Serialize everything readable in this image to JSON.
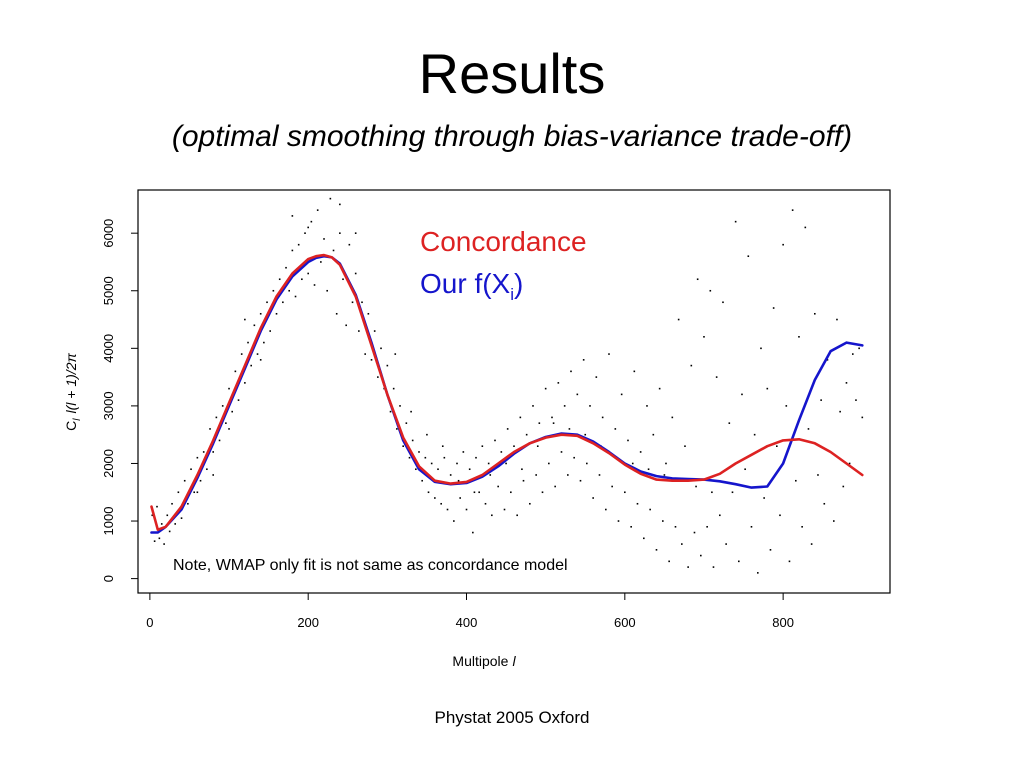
{
  "slide": {
    "title": "Results",
    "subtitle": "(optimal smoothing through bias-variance trade-off)",
    "footer": "Phystat 2005 Oxford"
  },
  "chart_data": {
    "type": "scatter",
    "xlabel_text": "Multipole",
    "xlabel_symbol": "l",
    "ylabel_c": "C",
    "ylabel_sub": "l",
    "ylabel_rest": "l(l + 1)/2π",
    "xlim": [
      -15,
      935
    ],
    "ylim": [
      -250,
      6750
    ],
    "x_ticks": [
      0,
      200,
      400,
      600,
      800
    ],
    "y_ticks": [
      0,
      1000,
      2000,
      3000,
      4000,
      5000,
      6000
    ],
    "grid": false,
    "legend_placement": "top-right inside plot",
    "annotation": "Note, WMAP only fit is not same as concordance model",
    "colors": {
      "concordance": "#dd2222",
      "fit": "#1515cc",
      "points": "#000000"
    },
    "series": [
      {
        "name": "Concordance",
        "legend_text": "Concordance",
        "color": "#dd2222",
        "x": [
          2,
          10,
          20,
          40,
          60,
          80,
          100,
          120,
          140,
          160,
          180,
          200,
          210,
          220,
          230,
          240,
          260,
          280,
          300,
          320,
          340,
          360,
          380,
          400,
          420,
          440,
          460,
          480,
          500,
          520,
          540,
          560,
          580,
          600,
          620,
          640,
          660,
          680,
          700,
          720,
          740,
          760,
          780,
          800,
          820,
          840,
          860,
          880,
          900
        ],
        "y": [
          1250,
          850,
          900,
          1250,
          1800,
          2400,
          3050,
          3700,
          4350,
          4900,
          5300,
          5550,
          5600,
          5620,
          5580,
          5450,
          4900,
          4050,
          3200,
          2450,
          1950,
          1700,
          1650,
          1680,
          1800,
          2000,
          2200,
          2350,
          2450,
          2500,
          2480,
          2350,
          2180,
          1980,
          1820,
          1720,
          1700,
          1700,
          1720,
          1820,
          2000,
          2150,
          2300,
          2400,
          2420,
          2350,
          2200,
          2000,
          1800
        ]
      },
      {
        "name": "Our f(Xi)",
        "legend_text": "Our f(X",
        "legend_sub": "i",
        "legend_close": ")",
        "color": "#1515cc",
        "x": [
          2,
          10,
          20,
          40,
          60,
          80,
          100,
          120,
          140,
          160,
          180,
          200,
          210,
          220,
          230,
          240,
          260,
          280,
          300,
          320,
          340,
          360,
          380,
          400,
          420,
          440,
          460,
          480,
          500,
          520,
          540,
          560,
          580,
          600,
          620,
          640,
          660,
          680,
          700,
          720,
          740,
          760,
          780,
          800,
          820,
          840,
          860,
          880,
          900
        ],
        "y": [
          800,
          800,
          900,
          1200,
          1750,
          2350,
          3000,
          3650,
          4300,
          4850,
          5250,
          5500,
          5570,
          5600,
          5580,
          5470,
          4930,
          4100,
          3200,
          2400,
          1900,
          1680,
          1640,
          1660,
          1770,
          1950,
          2170,
          2350,
          2460,
          2520,
          2500,
          2380,
          2200,
          2000,
          1860,
          1780,
          1740,
          1730,
          1720,
          1690,
          1640,
          1580,
          1600,
          2000,
          2750,
          3450,
          3950,
          4100,
          4050
        ]
      }
    ],
    "scatter_points": [
      [
        3,
        1100
      ],
      [
        6,
        650
      ],
      [
        9,
        1250
      ],
      [
        12,
        700
      ],
      [
        15,
        950
      ],
      [
        18,
        600
      ],
      [
        22,
        1100
      ],
      [
        25,
        820
      ],
      [
        28,
        1300
      ],
      [
        32,
        950
      ],
      [
        36,
        1500
      ],
      [
        40,
        1050
      ],
      [
        44,
        1700
      ],
      [
        48,
        1300
      ],
      [
        52,
        1900
      ],
      [
        56,
        1500
      ],
      [
        60,
        2100
      ],
      [
        64,
        1700
      ],
      [
        68,
        2200
      ],
      [
        72,
        1900
      ],
      [
        76,
        2600
      ],
      [
        80,
        2200
      ],
      [
        84,
        2800
      ],
      [
        88,
        2400
      ],
      [
        92,
        3000
      ],
      [
        96,
        2700
      ],
      [
        100,
        3300
      ],
      [
        104,
        2900
      ],
      [
        108,
        3600
      ],
      [
        112,
        3100
      ],
      [
        116,
        3900
      ],
      [
        120,
        3400
      ],
      [
        124,
        4100
      ],
      [
        128,
        3700
      ],
      [
        132,
        4400
      ],
      [
        136,
        3900
      ],
      [
        140,
        4600
      ],
      [
        144,
        4100
      ],
      [
        148,
        4800
      ],
      [
        152,
        4300
      ],
      [
        156,
        5000
      ],
      [
        160,
        4600
      ],
      [
        164,
        5200
      ],
      [
        168,
        4800
      ],
      [
        172,
        5400
      ],
      [
        176,
        5000
      ],
      [
        180,
        5700
      ],
      [
        184,
        4900
      ],
      [
        188,
        5800
      ],
      [
        192,
        5200
      ],
      [
        196,
        6000
      ],
      [
        200,
        5300
      ],
      [
        204,
        6200
      ],
      [
        208,
        5100
      ],
      [
        212,
        6400
      ],
      [
        216,
        5500
      ],
      [
        220,
        5900
      ],
      [
        224,
        5000
      ],
      [
        228,
        6600
      ],
      [
        232,
        5700
      ],
      [
        236,
        4600
      ],
      [
        240,
        6000
      ],
      [
        244,
        5200
      ],
      [
        248,
        4400
      ],
      [
        252,
        5800
      ],
      [
        256,
        4800
      ],
      [
        260,
        5300
      ],
      [
        264,
        4300
      ],
      [
        268,
        4800
      ],
      [
        272,
        3900
      ],
      [
        276,
        4600
      ],
      [
        280,
        3800
      ],
      [
        284,
        4300
      ],
      [
        288,
        3500
      ],
      [
        292,
        4000
      ],
      [
        296,
        3300
      ],
      [
        300,
        3700
      ],
      [
        304,
        2900
      ],
      [
        308,
        3300
      ],
      [
        312,
        2600
      ],
      [
        316,
        3000
      ],
      [
        320,
        2300
      ],
      [
        324,
        2700
      ],
      [
        328,
        2100
      ],
      [
        332,
        2400
      ],
      [
        336,
        1900
      ],
      [
        340,
        2200
      ],
      [
        344,
        1700
      ],
      [
        348,
        2100
      ],
      [
        352,
        1500
      ],
      [
        356,
        2000
      ],
      [
        360,
        1400
      ],
      [
        364,
        1900
      ],
      [
        368,
        1300
      ],
      [
        372,
        2100
      ],
      [
        376,
        1200
      ],
      [
        380,
        1800
      ],
      [
        384,
        1000
      ],
      [
        388,
        2000
      ],
      [
        392,
        1400
      ],
      [
        396,
        2200
      ],
      [
        400,
        1200
      ],
      [
        404,
        1900
      ],
      [
        408,
        800
      ],
      [
        412,
        2100
      ],
      [
        416,
        1500
      ],
      [
        420,
        2300
      ],
      [
        424,
        1300
      ],
      [
        428,
        2000
      ],
      [
        432,
        1100
      ],
      [
        436,
        2400
      ],
      [
        440,
        1600
      ],
      [
        444,
        2200
      ],
      [
        448,
        1200
      ],
      [
        452,
        2600
      ],
      [
        456,
        1500
      ],
      [
        460,
        2300
      ],
      [
        464,
        1100
      ],
      [
        468,
        2800
      ],
      [
        472,
        1700
      ],
      [
        476,
        2500
      ],
      [
        480,
        1300
      ],
      [
        484,
        3000
      ],
      [
        488,
        1800
      ],
      [
        492,
        2700
      ],
      [
        496,
        1500
      ],
      [
        500,
        3300
      ],
      [
        504,
        2000
      ],
      [
        508,
        2800
      ],
      [
        512,
        1600
      ],
      [
        516,
        3400
      ],
      [
        520,
        2200
      ],
      [
        524,
        3000
      ],
      [
        528,
        1800
      ],
      [
        532,
        3600
      ],
      [
        536,
        2100
      ],
      [
        540,
        3200
      ],
      [
        544,
        1700
      ],
      [
        548,
        3800
      ],
      [
        552,
        2000
      ],
      [
        556,
        3000
      ],
      [
        560,
        1400
      ],
      [
        564,
        3500
      ],
      [
        568,
        1800
      ],
      [
        572,
        2800
      ],
      [
        576,
        1200
      ],
      [
        580,
        3900
      ],
      [
        584,
        1600
      ],
      [
        588,
        2600
      ],
      [
        592,
        1000
      ],
      [
        596,
        3200
      ],
      [
        600,
        1500
      ],
      [
        604,
        2400
      ],
      [
        608,
        900
      ],
      [
        612,
        3600
      ],
      [
        616,
        1300
      ],
      [
        620,
        2200
      ],
      [
        624,
        700
      ],
      [
        628,
        3000
      ],
      [
        632,
        1200
      ],
      [
        636,
        2500
      ],
      [
        640,
        500
      ],
      [
        644,
        3300
      ],
      [
        648,
        1000
      ],
      [
        652,
        2000
      ],
      [
        656,
        300
      ],
      [
        660,
        2800
      ],
      [
        664,
        900
      ],
      [
        668,
        4500
      ],
      [
        672,
        600
      ],
      [
        676,
        2300
      ],
      [
        680,
        200
      ],
      [
        684,
        3700
      ],
      [
        688,
        800
      ],
      [
        692,
        5200
      ],
      [
        696,
        400
      ],
      [
        700,
        4200
      ],
      [
        704,
        900
      ],
      [
        708,
        5000
      ],
      [
        712,
        200
      ],
      [
        716,
        3500
      ],
      [
        720,
        1100
      ],
      [
        724,
        4800
      ],
      [
        728,
        600
      ],
      [
        732,
        2700
      ],
      [
        736,
        1500
      ],
      [
        740,
        6200
      ],
      [
        744,
        300
      ],
      [
        748,
        3200
      ],
      [
        752,
        1900
      ],
      [
        756,
        5600
      ],
      [
        760,
        900
      ],
      [
        764,
        2500
      ],
      [
        768,
        100
      ],
      [
        772,
        4000
      ],
      [
        776,
        1400
      ],
      [
        780,
        3300
      ],
      [
        784,
        500
      ],
      [
        788,
        4700
      ],
      [
        792,
        2300
      ],
      [
        796,
        1100
      ],
      [
        800,
        5800
      ],
      [
        804,
        3000
      ],
      [
        808,
        300
      ],
      [
        812,
        6400
      ],
      [
        816,
        1700
      ],
      [
        820,
        4200
      ],
      [
        824,
        900
      ],
      [
        828,
        6100
      ],
      [
        832,
        2600
      ],
      [
        836,
        600
      ],
      [
        840,
        4600
      ],
      [
        844,
        1800
      ],
      [
        848,
        3100
      ],
      [
        852,
        1300
      ],
      [
        856,
        3800
      ],
      [
        860,
        2200
      ],
      [
        864,
        1000
      ],
      [
        868,
        4500
      ],
      [
        872,
        2900
      ],
      [
        876,
        1600
      ],
      [
        880,
        3400
      ],
      [
        884,
        2000
      ],
      [
        888,
        3900
      ],
      [
        892,
        3100
      ],
      [
        896,
        4000
      ],
      [
        900,
        2800
      ],
      [
        180,
        6300
      ],
      [
        200,
        6100
      ],
      [
        240,
        6500
      ],
      [
        260,
        6000
      ],
      [
        120,
        4500
      ],
      [
        140,
        3800
      ],
      [
        100,
        2600
      ],
      [
        80,
        1800
      ],
      [
        60,
        1500
      ],
      [
        310,
        3900
      ],
      [
        330,
        2900
      ],
      [
        350,
        2500
      ],
      [
        370,
        2300
      ],
      [
        390,
        1700
      ],
      [
        410,
        1500
      ],
      [
        430,
        1800
      ],
      [
        450,
        2000
      ],
      [
        470,
        1900
      ],
      [
        490,
        2300
      ],
      [
        510,
        2700
      ],
      [
        530,
        2600
      ],
      [
        550,
        2500
      ],
      [
        570,
        2300
      ],
      [
        590,
        2100
      ],
      [
        610,
        2000
      ],
      [
        630,
        1900
      ],
      [
        650,
        1800
      ],
      [
        670,
        1700
      ],
      [
        690,
        1600
      ],
      [
        710,
        1500
      ]
    ]
  }
}
